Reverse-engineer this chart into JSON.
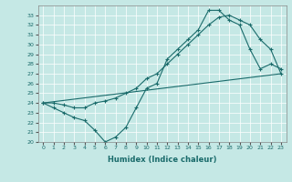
{
  "xlabel": "Humidex (Indice chaleur)",
  "xlim": [
    -0.5,
    23.5
  ],
  "ylim": [
    20,
    34
  ],
  "yticks": [
    20,
    21,
    22,
    23,
    24,
    25,
    26,
    27,
    28,
    29,
    30,
    31,
    32,
    33
  ],
  "xticks": [
    0,
    1,
    2,
    3,
    4,
    5,
    6,
    7,
    8,
    9,
    10,
    11,
    12,
    13,
    14,
    15,
    16,
    17,
    18,
    19,
    20,
    21,
    22,
    23
  ],
  "bg_color": "#c5e8e5",
  "line_color": "#1a6b6b",
  "line1_x": [
    0,
    1,
    2,
    3,
    4,
    5,
    6,
    7,
    8,
    9,
    10,
    11,
    12,
    13,
    14,
    15,
    16,
    17,
    18,
    19,
    20,
    21,
    22,
    23
  ],
  "line1_y": [
    24.0,
    23.5,
    23.0,
    22.5,
    22.2,
    21.2,
    20.0,
    20.5,
    21.5,
    23.5,
    25.5,
    26.0,
    28.5,
    29.5,
    30.5,
    31.5,
    33.5,
    33.5,
    32.5,
    32.0,
    29.5,
    27.5,
    28.0,
    27.5
  ],
  "line2_x": [
    0,
    1,
    2,
    3,
    4,
    5,
    6,
    7,
    8,
    9,
    10,
    11,
    12,
    13,
    14,
    15,
    16,
    17,
    18,
    19,
    20,
    21,
    22,
    23
  ],
  "line2_y": [
    24.0,
    24.0,
    23.8,
    23.5,
    23.5,
    24.0,
    24.2,
    24.5,
    25.0,
    25.5,
    26.5,
    27.0,
    28.0,
    29.0,
    30.0,
    31.0,
    32.0,
    32.8,
    33.0,
    32.5,
    32.0,
    30.5,
    29.5,
    27.0
  ],
  "line3_x": [
    0,
    23
  ],
  "line3_y": [
    24.0,
    27.0
  ],
  "marker_x1": [
    0,
    1,
    2,
    3,
    6,
    7,
    8,
    9,
    10,
    11,
    12,
    13,
    14,
    15,
    16,
    17,
    18,
    19,
    20,
    22,
    23
  ],
  "marker_x2": [
    0,
    1,
    2,
    9,
    10,
    11,
    12,
    13,
    14,
    15,
    16,
    17,
    18,
    19,
    20,
    21,
    22,
    23
  ]
}
